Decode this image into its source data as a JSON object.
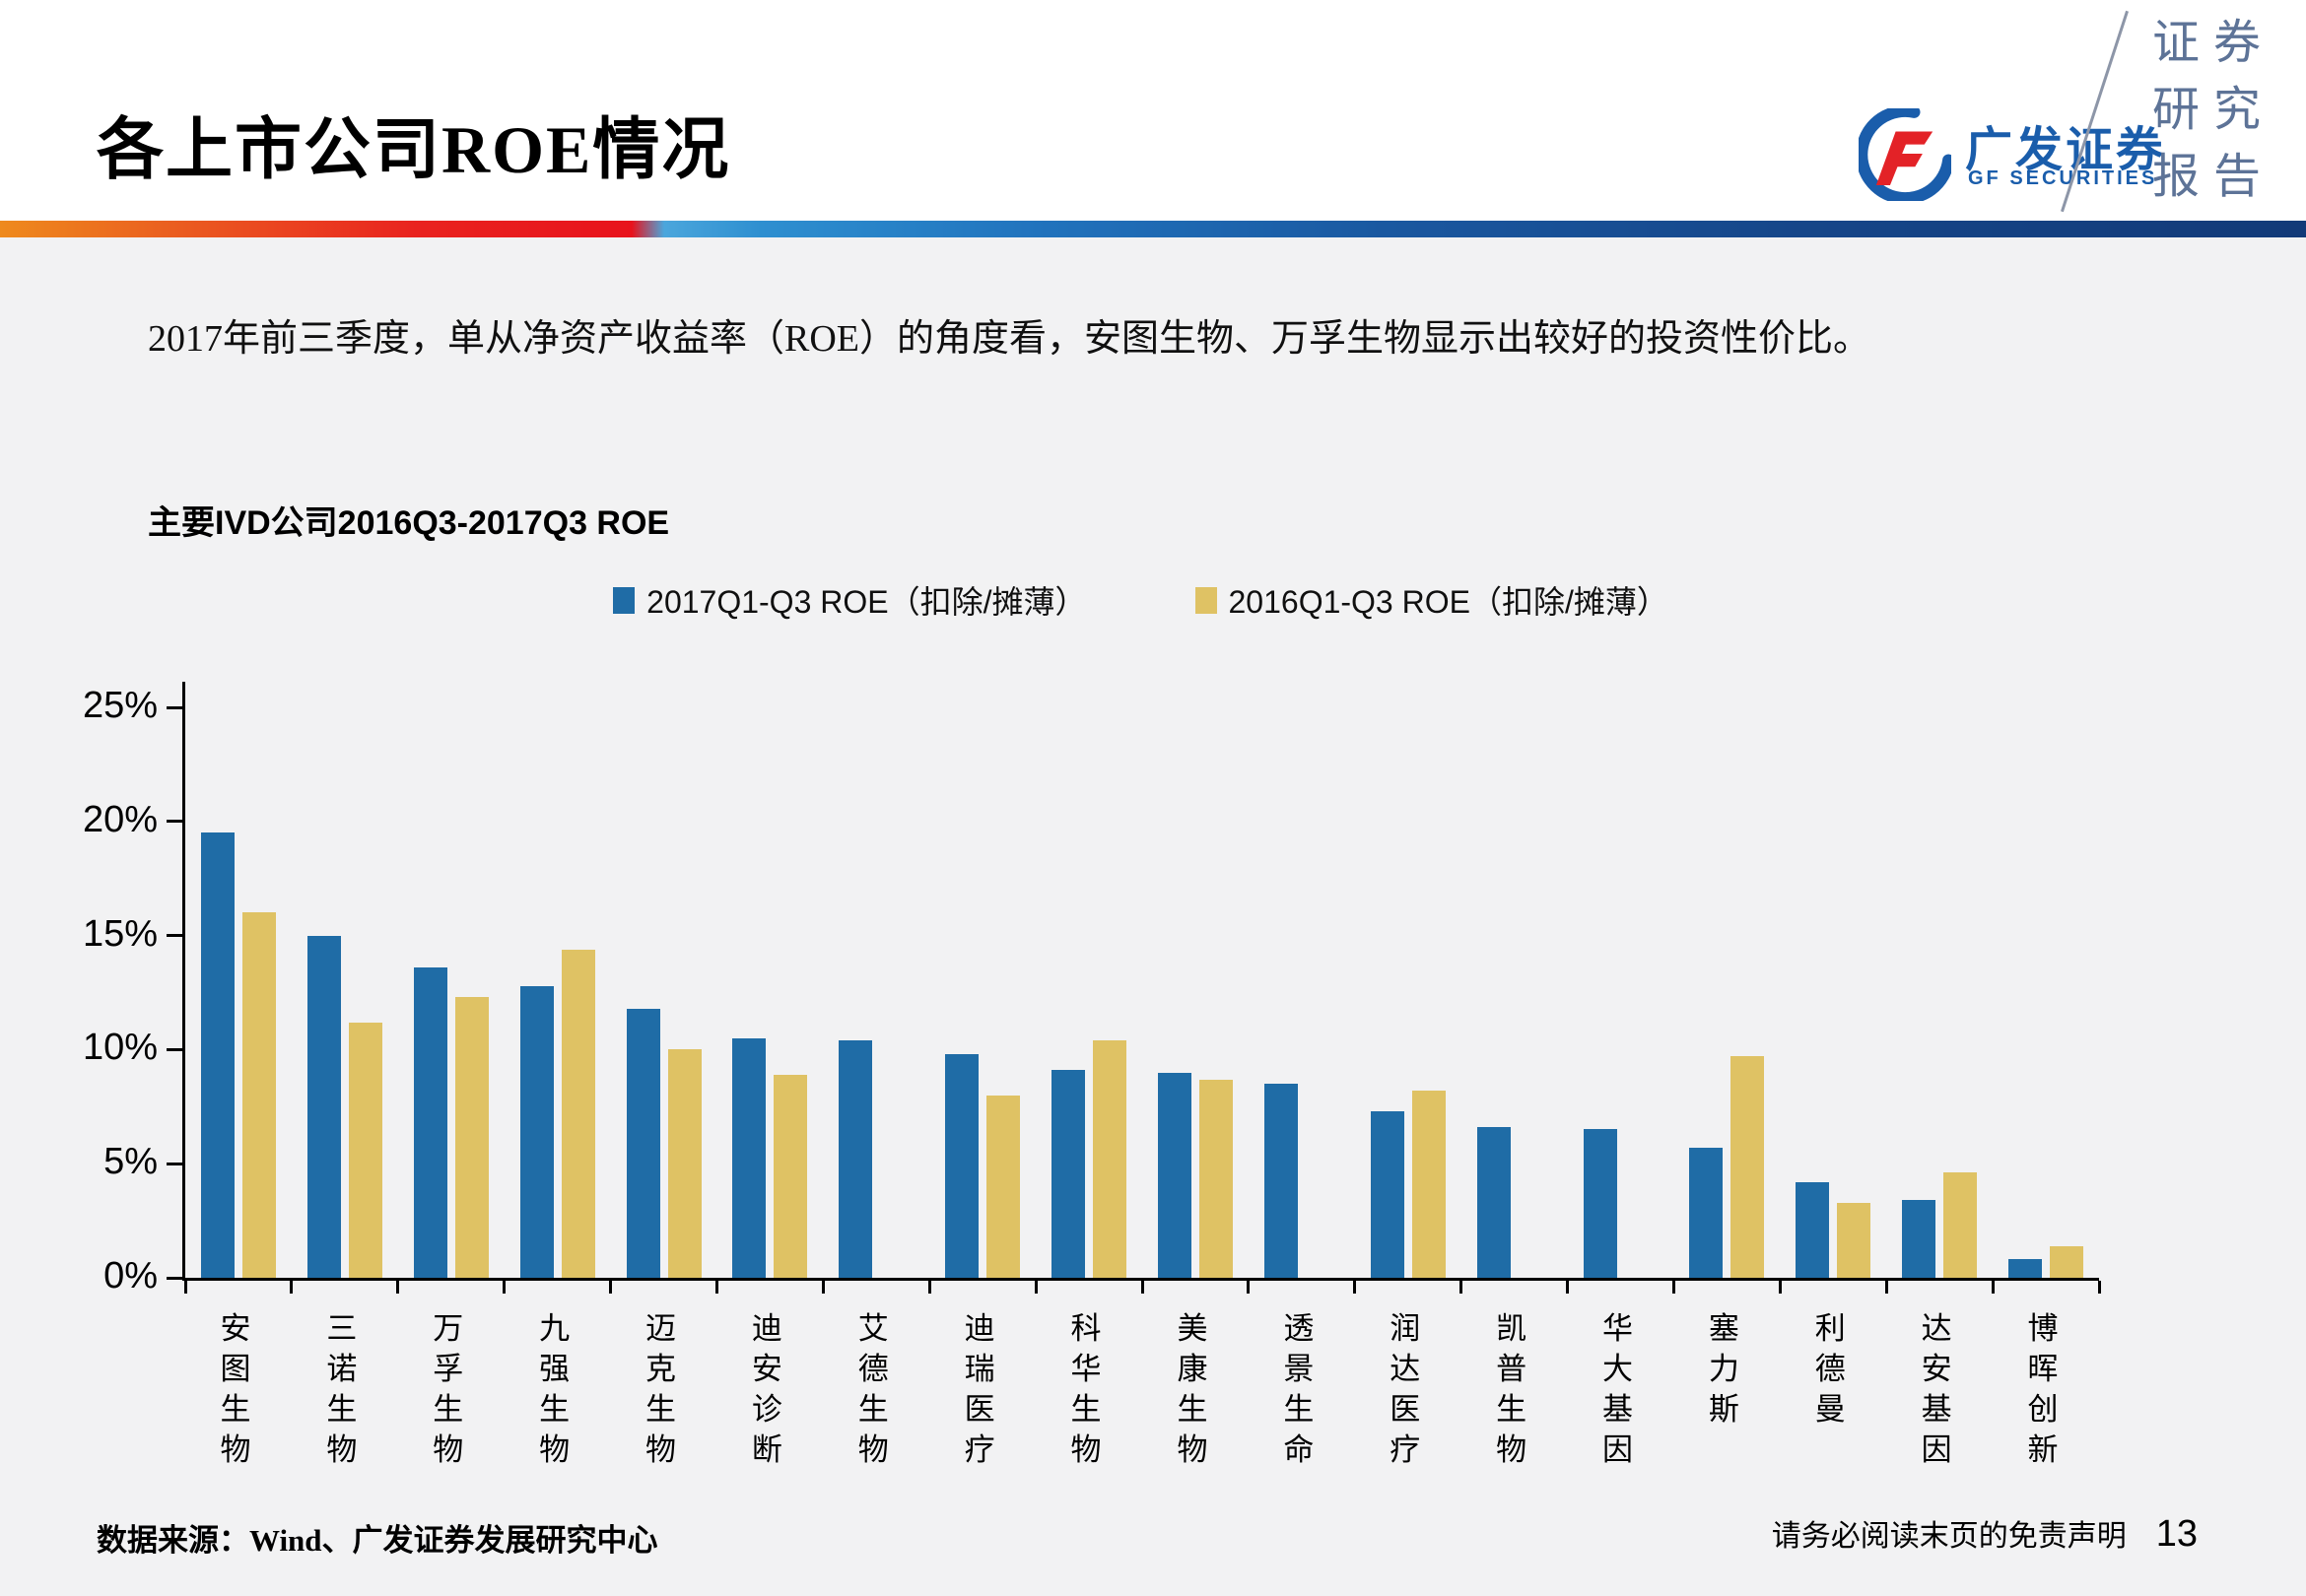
{
  "page": {
    "title": "各上市公司ROE情况",
    "logo": {
      "cn": "广发证券",
      "en": "GF SECURITIES"
    },
    "side_badge": {
      "line1": "证券",
      "line2": "研究",
      "line3": "报告"
    },
    "intro": "2017年前三季度，单从净资产收益率（ROE）的角度看，安图生物、万孚生物显示出较好的投资性价比。",
    "footer": {
      "source": "数据来源：Wind、广发证券发展研究中心",
      "disclaimer": "请务必阅读末页的免责声明",
      "page_number": "13"
    }
  },
  "chart_data": {
    "type": "bar",
    "title": "主要IVD公司2016Q3-2017Q3 ROE",
    "categories": [
      "安图生物",
      "三诺生物",
      "万孚生物",
      "九强生物",
      "迈克生物",
      "迪安诊断",
      "艾德生物",
      "迪瑞医疗",
      "科华生物",
      "美康生物",
      "透景生命",
      "润达医疗",
      "凯普生物",
      "华大基因",
      "塞力斯",
      "利德曼",
      "达安基因",
      "博晖创新"
    ],
    "series": [
      {
        "name": "2017Q1-Q3 ROE（扣除/摊薄）",
        "color": "#1F6CA6",
        "values": [
          19.5,
          15.0,
          13.6,
          12.8,
          11.8,
          10.5,
          10.4,
          9.8,
          9.1,
          9.0,
          8.5,
          7.3,
          6.6,
          6.5,
          5.7,
          4.2,
          3.4,
          0.8
        ]
      },
      {
        "name": "2016Q1-Q3 ROE（扣除/摊薄）",
        "color": "#DFC264",
        "values": [
          16.0,
          11.2,
          12.3,
          14.4,
          10.0,
          8.9,
          null,
          8.0,
          10.4,
          8.7,
          null,
          8.2,
          null,
          null,
          9.7,
          3.3,
          4.6,
          1.4
        ]
      }
    ],
    "ylim": [
      0,
      25
    ],
    "ytick_step": 5,
    "ytick_labels": [
      "0%",
      "5%",
      "10%",
      "15%",
      "20%",
      "25%"
    ],
    "grid": false,
    "legend_position": "top"
  },
  "colors": {
    "bar_2017": "#1F6CA6",
    "bar_2016": "#DFC264",
    "accent_orange": "#EE8A1D",
    "accent_red": "#E8131C",
    "accent_light_blue": "#2E8FD0",
    "accent_navy": "#123A78",
    "logo_blue": "#1A5DAB",
    "logo_red": "#E32227",
    "badge_text": "#5D7397",
    "background": "#F2F2F3",
    "header_background": "#FFFFFF"
  }
}
